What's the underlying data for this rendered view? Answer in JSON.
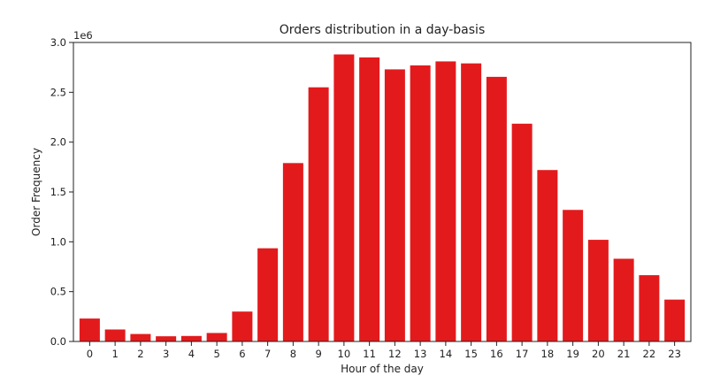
{
  "chart_data": {
    "type": "bar",
    "title": "Orders distribution in a day-basis",
    "xlabel": "Hour of the day",
    "ylabel": "Order Frequency",
    "y_scale_label": "1e6",
    "categories": [
      "0",
      "1",
      "2",
      "3",
      "4",
      "5",
      "6",
      "7",
      "8",
      "9",
      "10",
      "11",
      "12",
      "13",
      "14",
      "15",
      "16",
      "17",
      "18",
      "19",
      "20",
      "21",
      "22",
      "23"
    ],
    "values": [
      230000,
      120000,
      75000,
      52000,
      55000,
      85000,
      300000,
      935000,
      1790000,
      2550000,
      2880000,
      2850000,
      2730000,
      2770000,
      2810000,
      2790000,
      2655000,
      2185000,
      1720000,
      1320000,
      1020000,
      830000,
      665000,
      420000
    ],
    "ylim": [
      0,
      3000000
    ],
    "y_ticks": [
      0,
      500000,
      1000000,
      1500000,
      2000000,
      2500000,
      3000000
    ],
    "y_tick_labels": [
      "0.0",
      "0.5",
      "1.0",
      "1.5",
      "2.0",
      "2.5",
      "3.0"
    ],
    "bar_color": "#e31a1c",
    "grid": false,
    "legend": "none"
  }
}
